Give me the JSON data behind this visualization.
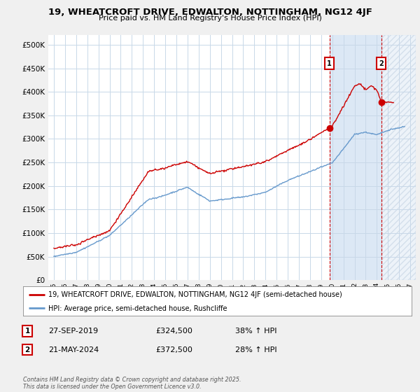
{
  "title": "19, WHEATCROFT DRIVE, EDWALTON, NOTTINGHAM, NG12 4JF",
  "subtitle": "Price paid vs. HM Land Registry's House Price Index (HPI)",
  "bg_color": "#f0f0f0",
  "plot_bg_color": "#ffffff",
  "grid_color": "#c8d8e8",
  "shaded_color": "#dce8f5",
  "red_color": "#cc0000",
  "blue_color": "#6699cc",
  "marker1_x": 2019.75,
  "marker2_x": 2024.39,
  "legend_line1": "19, WHEATCROFT DRIVE, EDWALTON, NOTTINGHAM, NG12 4JF (semi-detached house)",
  "legend_line2": "HPI: Average price, semi-detached house, Rushcliffe",
  "table_row1": [
    "1",
    "27-SEP-2019",
    "£324,500",
    "38% ↑ HPI"
  ],
  "table_row2": [
    "2",
    "21-MAY-2024",
    "£372,500",
    "28% ↑ HPI"
  ],
  "footer": "Contains HM Land Registry data © Crown copyright and database right 2025.\nThis data is licensed under the Open Government Licence v3.0.",
  "xmin": 1994.5,
  "xmax": 2027.5,
  "ymin": 0,
  "ymax": 520000
}
